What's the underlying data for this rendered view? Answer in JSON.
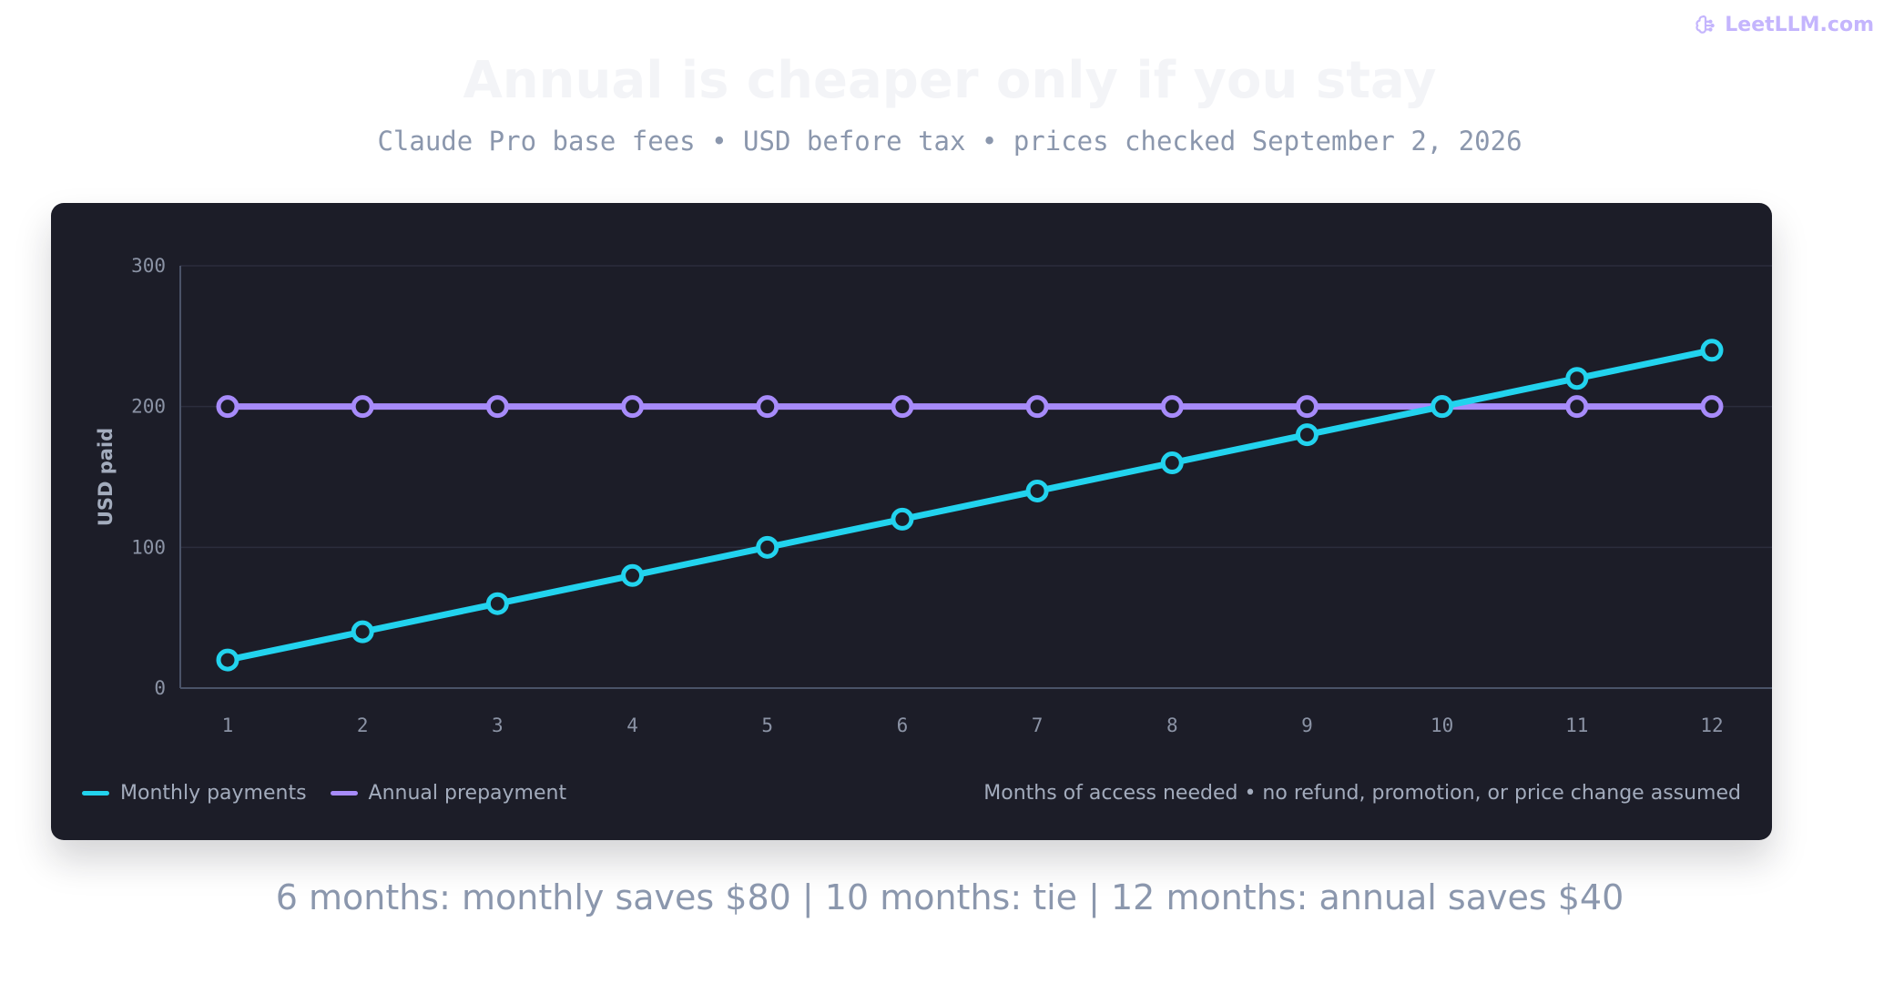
{
  "brand": {
    "name": "LeetLLM.com",
    "icon": "brain-icon"
  },
  "header": {
    "title": "Annual is cheaper only if you stay",
    "subtitle": "Claude Pro base fees • USD before tax • prices checked September 2, 2026"
  },
  "colors": {
    "monthly": "#22d3ee",
    "annual": "#a78bfa",
    "card_bg": "#1c1d28",
    "grid": "#2b2d3c",
    "axis": "#4a5368",
    "tick": "#8b93a5"
  },
  "chart_data": {
    "type": "line",
    "x": [
      1,
      2,
      3,
      4,
      5,
      6,
      7,
      8,
      9,
      10,
      11,
      12
    ],
    "series": [
      {
        "name": "Monthly payments",
        "values": [
          20,
          40,
          60,
          80,
          100,
          120,
          140,
          160,
          180,
          200,
          220,
          240
        ]
      },
      {
        "name": "Annual prepayment",
        "values": [
          200,
          200,
          200,
          200,
          200,
          200,
          200,
          200,
          200,
          200,
          200,
          200
        ]
      }
    ],
    "ylabel": "USD paid",
    "xlabel": "Months of access needed • no refund, promotion, or price change assumed",
    "ylim": [
      0,
      300
    ],
    "yticks": [
      0,
      100,
      200,
      300
    ],
    "grid": true,
    "legend": "bottom-left"
  },
  "summary": "6 months: monthly saves $80 | 10 months: tie | 12 months: annual saves $40"
}
